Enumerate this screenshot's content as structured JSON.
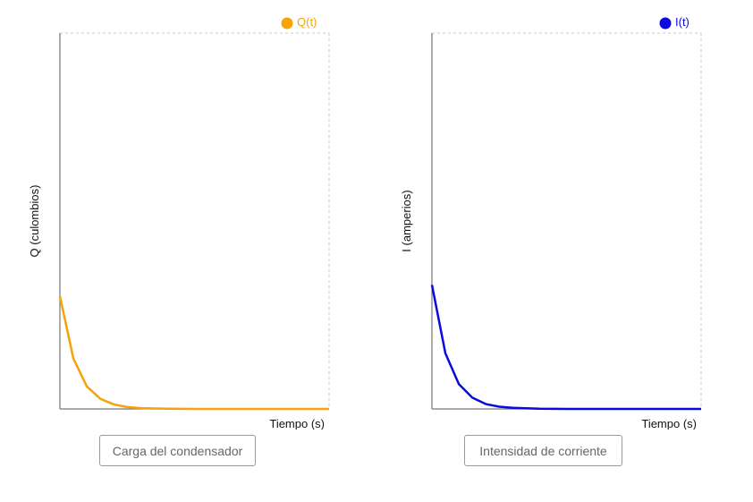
{
  "chart_data": [
    {
      "type": "line",
      "xlabel": "Tiempo (s)",
      "ylabel": "Q (culombios)",
      "legend_position": "top-right",
      "grid": false,
      "ylim": [
        0,
        1
      ],
      "series": [
        {
          "name": "Q(t)",
          "color": "#f5a30a",
          "x": [
            0,
            0.05,
            0.1,
            0.15,
            0.2,
            0.25,
            0.3,
            0.4,
            0.5,
            0.6,
            0.7,
            0.8,
            0.9,
            1.0
          ],
          "y": [
            0.3,
            0.134,
            0.06,
            0.027,
            0.012,
            0.005,
            0.002,
            0.0005,
            0.0001,
            0,
            0,
            0,
            0,
            0
          ]
        }
      ]
    },
    {
      "type": "line",
      "xlabel": "Tiempo (s)",
      "ylabel": "I (amperios)",
      "legend_position": "top-right",
      "grid": false,
      "ylim": [
        0,
        1
      ],
      "series": [
        {
          "name": "I(t)",
          "color": "#0a0ae0",
          "x": [
            0,
            0.05,
            0.1,
            0.15,
            0.2,
            0.25,
            0.3,
            0.4,
            0.5,
            0.6,
            0.7,
            0.8,
            0.9,
            1.0
          ],
          "y": [
            0.33,
            0.148,
            0.066,
            0.03,
            0.013,
            0.006,
            0.003,
            0.0005,
            0.0001,
            0,
            0,
            0,
            0,
            0
          ]
        }
      ]
    }
  ],
  "buttons": {
    "left_label": "Carga del condensador",
    "right_label": "Intensidad de corriente"
  }
}
